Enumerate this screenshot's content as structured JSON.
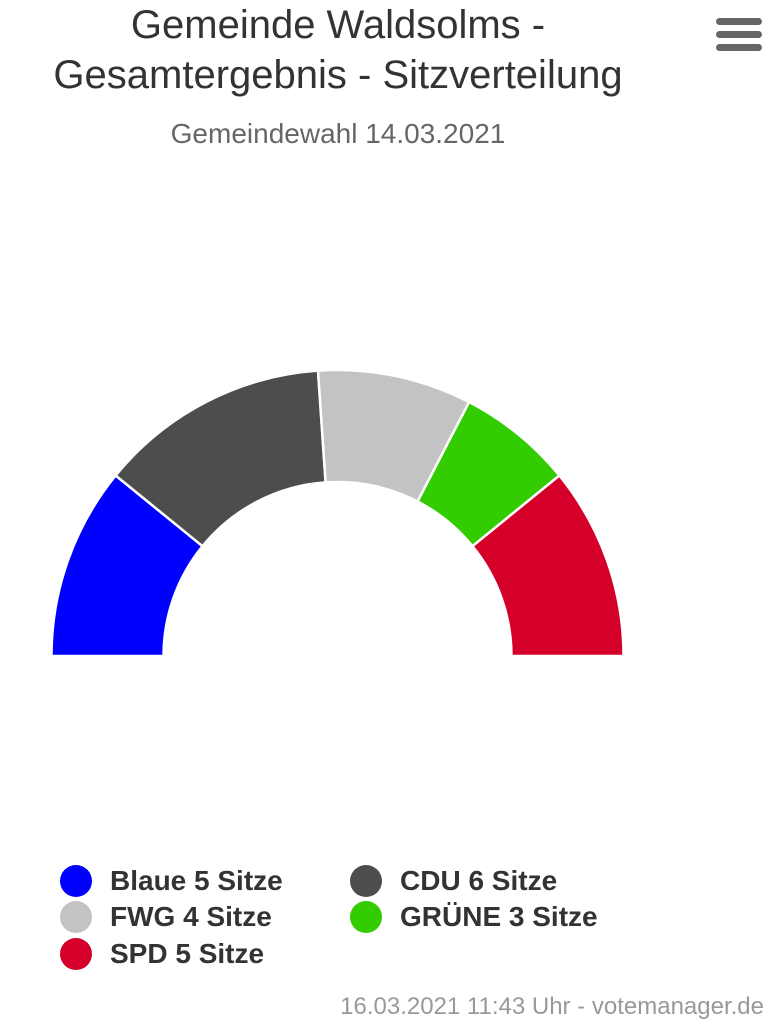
{
  "chart_data": {
    "type": "parliament-arc",
    "title_lines": [
      "Gemeinde Waldsolms -",
      "Gesamtergebnis - Sitzverteilung"
    ],
    "subtitle": "Gemeindewahl 14.03.2021",
    "series": [
      {
        "name": "Blaue",
        "seats": 5,
        "color": "#0000ff",
        "label": "Blaue 5 Sitze"
      },
      {
        "name": "CDU",
        "seats": 6,
        "color": "#4d4d4d",
        "label": "CDU 6 Sitze"
      },
      {
        "name": "FWG",
        "seats": 4,
        "color": "#c3c3c3",
        "label": "FWG 4 Sitze"
      },
      {
        "name": "GRÜNE",
        "seats": 3,
        "color": "#33cc00",
        "label": "GRÜNE 3 Sitze"
      },
      {
        "name": "SPD",
        "seats": 5,
        "color": "#d5002a",
        "label": "SPD 5 Sitze"
      }
    ],
    "legend_position": "bottom",
    "credits": "16.03.2021 11:43 Uhr - votemanager.de"
  },
  "menu": {
    "icon": "hamburger-menu-icon",
    "color": "#666666"
  }
}
